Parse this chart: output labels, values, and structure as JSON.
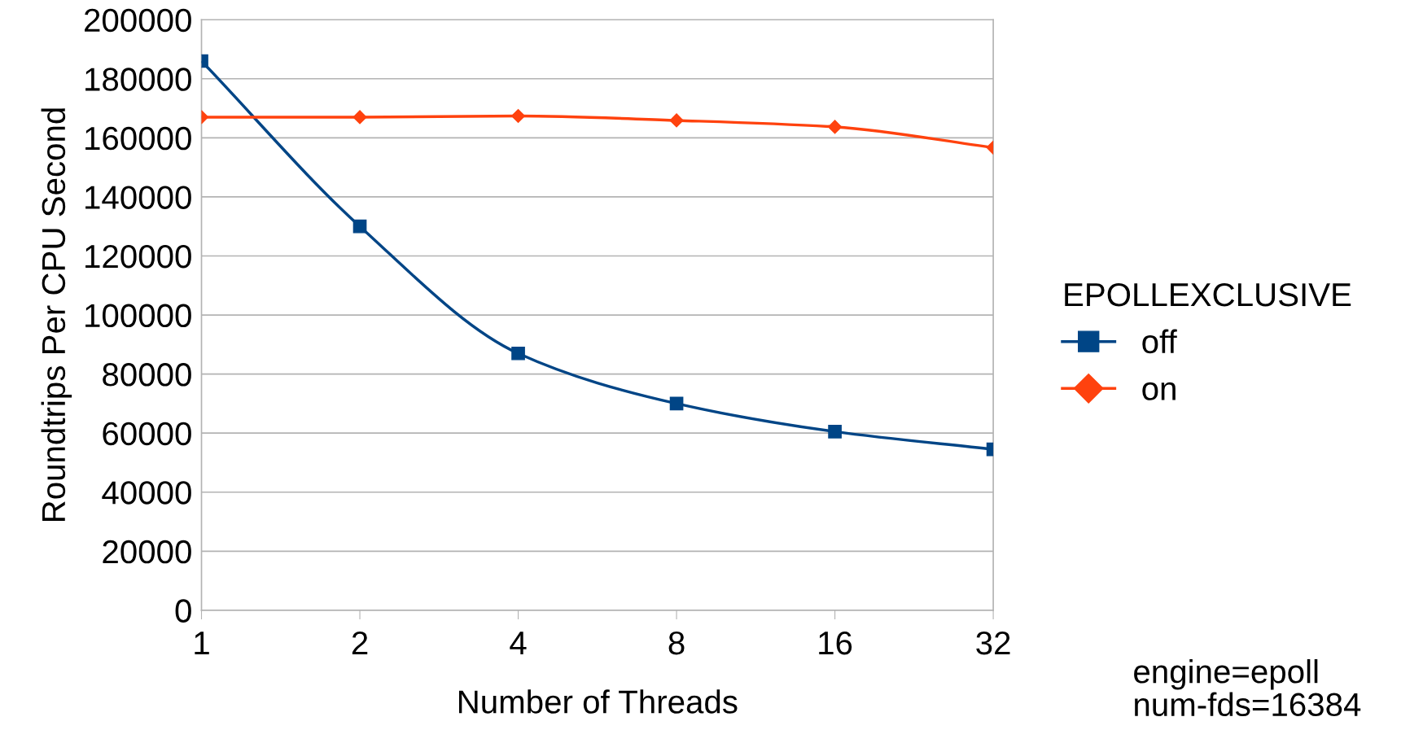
{
  "chart_data": {
    "type": "line",
    "xlabel": "Number of Threads",
    "ylabel": "Roundtrips Per CPU Second",
    "legend_title": "EPOLLEXCLUSIVE",
    "categories": [
      "1",
      "2",
      "4",
      "8",
      "16",
      "32"
    ],
    "series": [
      {
        "name": "off",
        "color": "#004586",
        "marker": "square",
        "values": [
          186000,
          130000,
          87000,
          70000,
          60500,
          54500
        ]
      },
      {
        "name": "on",
        "color": "#ff420e",
        "marker": "diamond",
        "values": [
          167000,
          167000,
          167400,
          165900,
          163700,
          156700
        ]
      }
    ],
    "ylim": [
      0,
      200000
    ],
    "yticks": [
      0,
      20000,
      40000,
      60000,
      80000,
      100000,
      120000,
      140000,
      160000,
      180000,
      200000
    ],
    "grid": "y",
    "legend": "right",
    "line_style": "solid",
    "annotations": [
      "engine=epoll\nnum-fds=16384"
    ]
  }
}
